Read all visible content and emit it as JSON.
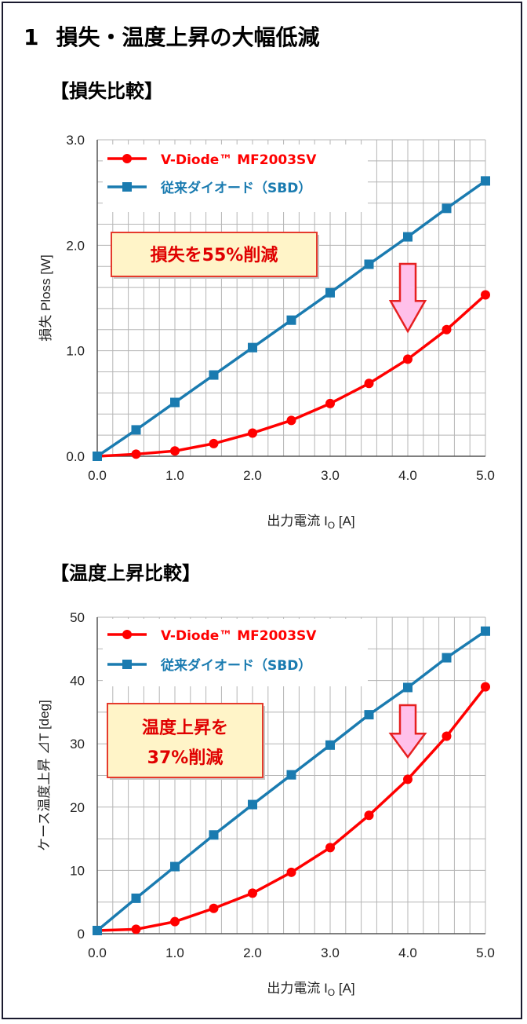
{
  "page": {
    "heading_number": "1",
    "heading_text": "損失・温度上昇の大幅低減"
  },
  "colors": {
    "v_diode": "#ff0000",
    "conventional": "#1a7bb0",
    "grid": "#b5b5b5",
    "callout_bg": "#fff4c8",
    "callout_border": "#e53a2c",
    "arrow_fill": "#ffc0ea",
    "arrow_stroke": "#e62020"
  },
  "chart_data": [
    {
      "id": "loss",
      "section_title": "【損失比較】",
      "type": "line",
      "xlabel": "出力電流 I",
      "xlabel_sub": "O",
      "xlabel_unit": " [A]",
      "ylabel": "損失 Ploss [W]",
      "xlim": [
        0,
        5
      ],
      "ylim": [
        0,
        3
      ],
      "x_ticks": [
        "0.0",
        "1.0",
        "2.0",
        "3.0",
        "4.0",
        "5.0"
      ],
      "y_ticks": [
        "0.0",
        "1.0",
        "2.0",
        "3.0"
      ],
      "x": [
        0.0,
        0.5,
        1.0,
        1.5,
        2.0,
        2.5,
        3.0,
        3.5,
        4.0,
        4.5,
        5.0
      ],
      "series": [
        {
          "name": "V-Diode™ MF2003SV",
          "marker": "circle",
          "color": "#ff0000",
          "values": [
            0.0,
            0.02,
            0.05,
            0.12,
            0.22,
            0.34,
            0.5,
            0.69,
            0.92,
            1.2,
            1.53
          ]
        },
        {
          "name": "従来ダイオード（SBD）",
          "marker": "square",
          "color": "#1a7bb0",
          "values": [
            0.0,
            0.25,
            0.51,
            0.77,
            1.03,
            1.29,
            1.55,
            1.82,
            2.08,
            2.35,
            2.61
          ]
        }
      ],
      "callout": [
        "損失を55%削減"
      ],
      "legend_position": "top-left"
    },
    {
      "id": "temp",
      "section_title": "【温度上昇比較】",
      "type": "line",
      "xlabel": "出力電流 I",
      "xlabel_sub": "O",
      "xlabel_unit": " [A]",
      "ylabel": "ケース温度上昇 ⊿T [deg]",
      "xlim": [
        0,
        5
      ],
      "ylim": [
        0,
        50
      ],
      "x_ticks": [
        "0.0",
        "1.0",
        "2.0",
        "3.0",
        "4.0",
        "5.0"
      ],
      "y_ticks": [
        "0",
        "10",
        "20",
        "30",
        "40",
        "50"
      ],
      "x": [
        0.0,
        0.5,
        1.0,
        1.5,
        2.0,
        2.5,
        3.0,
        3.5,
        4.0,
        4.5,
        5.0
      ],
      "series": [
        {
          "name": "V-Diode™ MF2003SV",
          "marker": "circle",
          "color": "#ff0000",
          "values": [
            0.5,
            0.7,
            1.9,
            4.0,
            6.4,
            9.7,
            13.6,
            18.7,
            24.4,
            31.2,
            39.0
          ]
        },
        {
          "name": "従来ダイオード（SBD）",
          "marker": "square",
          "color": "#1a7bb0",
          "values": [
            0.5,
            5.6,
            10.6,
            15.6,
            20.4,
            25.1,
            29.8,
            34.6,
            38.9,
            43.6,
            47.8
          ]
        }
      ],
      "callout": [
        "温度上昇を",
        "37%削減"
      ],
      "legend_position": "top-left"
    }
  ]
}
